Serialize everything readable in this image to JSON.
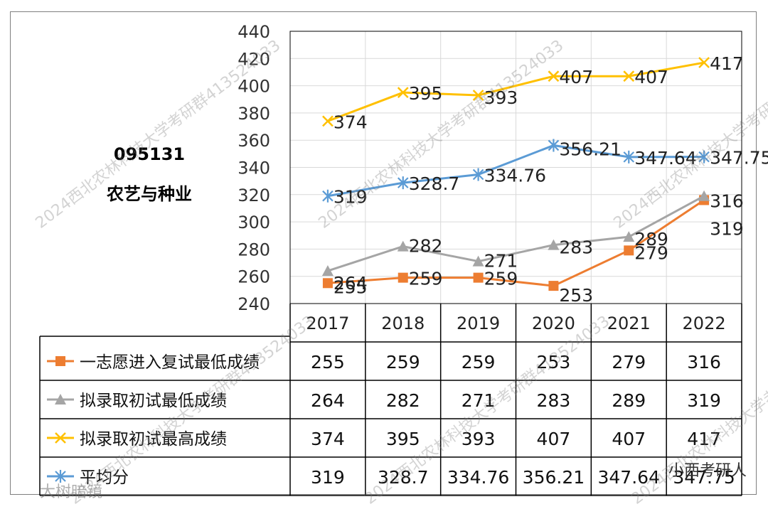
{
  "chart_data": {
    "type": "line",
    "title": "095131",
    "subtitle": "农艺与种业",
    "categories": [
      "2017",
      "2018",
      "2019",
      "2020",
      "2021",
      "2022"
    ],
    "ylim": [
      240,
      440
    ],
    "yticks": [
      240,
      260,
      280,
      300,
      320,
      340,
      360,
      380,
      400,
      420,
      440
    ],
    "grid": true,
    "legend": "data-table",
    "series": [
      {
        "name": "一志愿进入复试最低成绩",
        "color": "#ED7D31",
        "marker": "square",
        "values": [
          255,
          259,
          259,
          253,
          279,
          316
        ],
        "labels": [
          "255",
          "259",
          "259",
          "253",
          "279",
          "316"
        ]
      },
      {
        "name": "拟录取初试最低成绩",
        "color": "#A5A5A5",
        "marker": "triangle",
        "values": [
          264,
          282,
          271,
          283,
          289,
          319
        ],
        "labels": [
          "264",
          "282",
          "271",
          "283",
          "289",
          "319"
        ]
      },
      {
        "name": "拟录取初试最高成绩",
        "color": "#FFC000",
        "marker": "x",
        "values": [
          374,
          395,
          393,
          407,
          407,
          417
        ],
        "labels": [
          "374",
          "395",
          "393",
          "407",
          "407",
          "417"
        ]
      },
      {
        "name": "平均分",
        "color": "#5B9BD5",
        "marker": "star",
        "values": [
          319,
          328.7,
          334.76,
          356.21,
          347.64,
          347.75
        ],
        "labels": [
          "319",
          "328.7",
          "334.76",
          "356.21",
          "347.64",
          "347.75"
        ]
      }
    ]
  },
  "watermarks": [
    "2024西北农林科技大学考研群413524033"
  ],
  "footer": {
    "left": "大树暗镜",
    "right": "小西考研人"
  }
}
